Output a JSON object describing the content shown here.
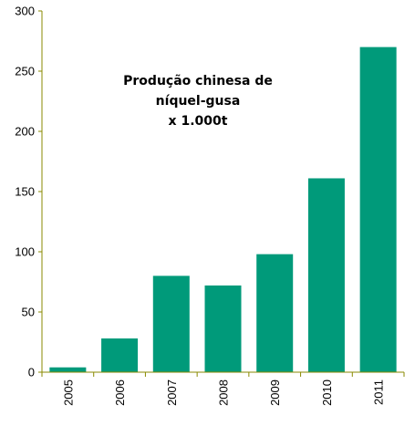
{
  "chart_data": {
    "type": "bar",
    "title_lines": [
      "Produção chinesa de",
      "níquel-gusa",
      "x 1.000t"
    ],
    "categories": [
      "2005",
      "2006",
      "2007",
      "2008",
      "2009",
      "2010",
      "2011"
    ],
    "values": [
      4,
      28,
      80,
      72,
      98,
      161,
      270
    ],
    "ylim": [
      0,
      300
    ],
    "yticks": [
      0,
      50,
      100,
      150,
      200,
      250,
      300
    ],
    "xlabel": "",
    "ylabel": "",
    "grid": false,
    "colors": {
      "bar": "#009a7a",
      "axis": "#8a8a00"
    }
  }
}
